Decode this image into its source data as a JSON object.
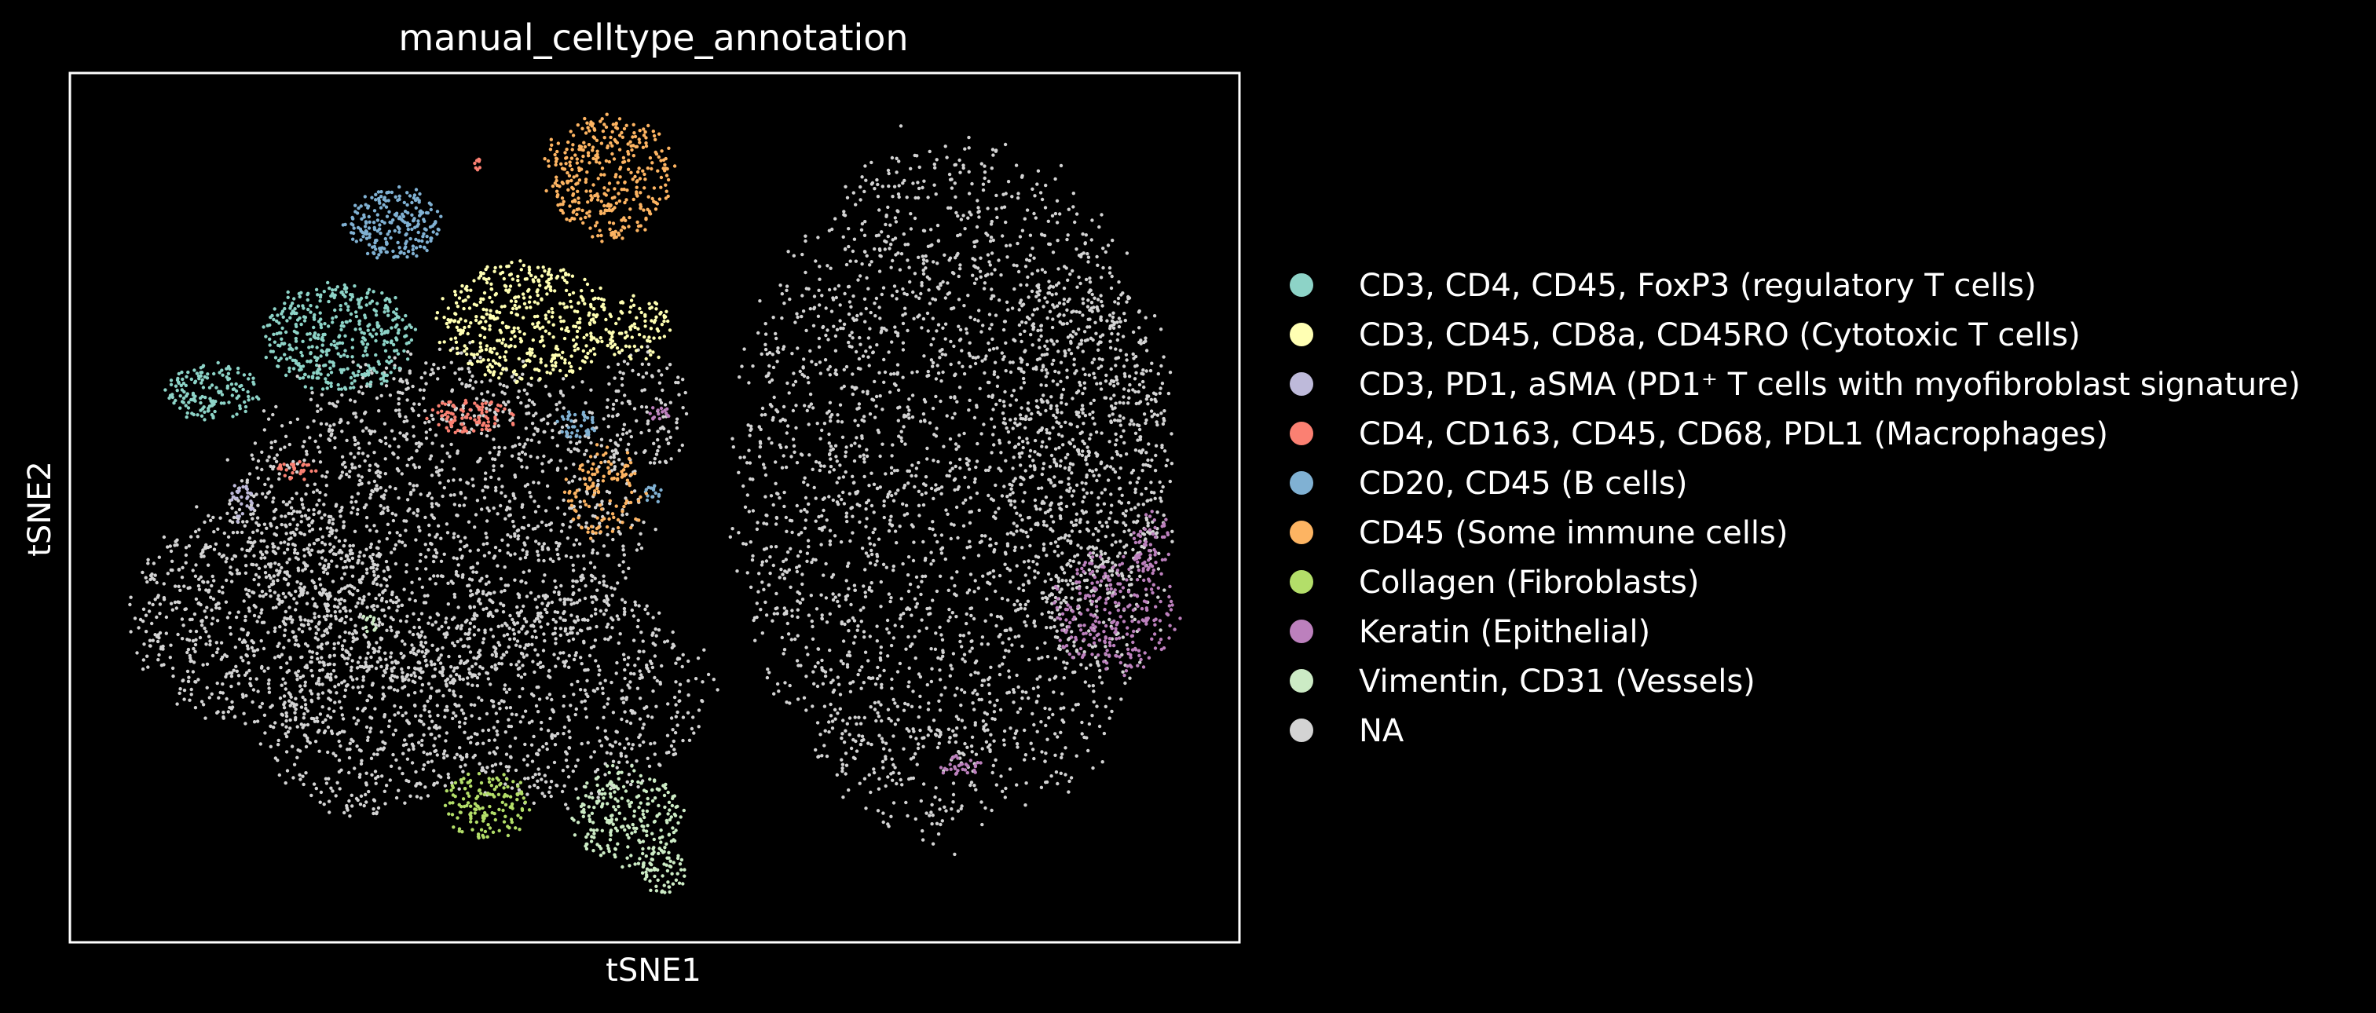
{
  "chart_data": {
    "type": "scatter",
    "title": "manual_celltype_annotation",
    "xlabel": "tSNE1",
    "ylabel": "tSNE2",
    "background": "#000000",
    "axis_color": "#ffffff",
    "ticks": false,
    "grid": false,
    "legend_placement": "right",
    "series": [
      {
        "name": "CD3, CD4, CD45, FoxP3 (regulatory T cells)",
        "color": "#8dd3c7"
      },
      {
        "name": "CD3, CD45, CD8a, CD45RO (Cytotoxic T cells)",
        "color": "#ffffb3"
      },
      {
        "name": "CD3, PD1, aSMA (PD1⁺ T cells with myofibroblast signature)",
        "color": "#bebada"
      },
      {
        "name": "CD4, CD163, CD45, CD68, PDL1 (Macrophages)",
        "color": "#fb8072"
      },
      {
        "name": "CD20, CD45 (B cells)",
        "color": "#80b1d3"
      },
      {
        "name": "CD45 (Some immune cells)",
        "color": "#fdb462"
      },
      {
        "name": "Collagen (Fibroblasts)",
        "color": "#b3de69"
      },
      {
        "name": "Keratin (Epithelial)",
        "color": "#bc80bd"
      },
      {
        "name": "Vimentin, CD31 (Vessels)",
        "color": "#ccebc5"
      },
      {
        "name": "NA",
        "color": "#d3d3d3"
      }
    ]
  }
}
